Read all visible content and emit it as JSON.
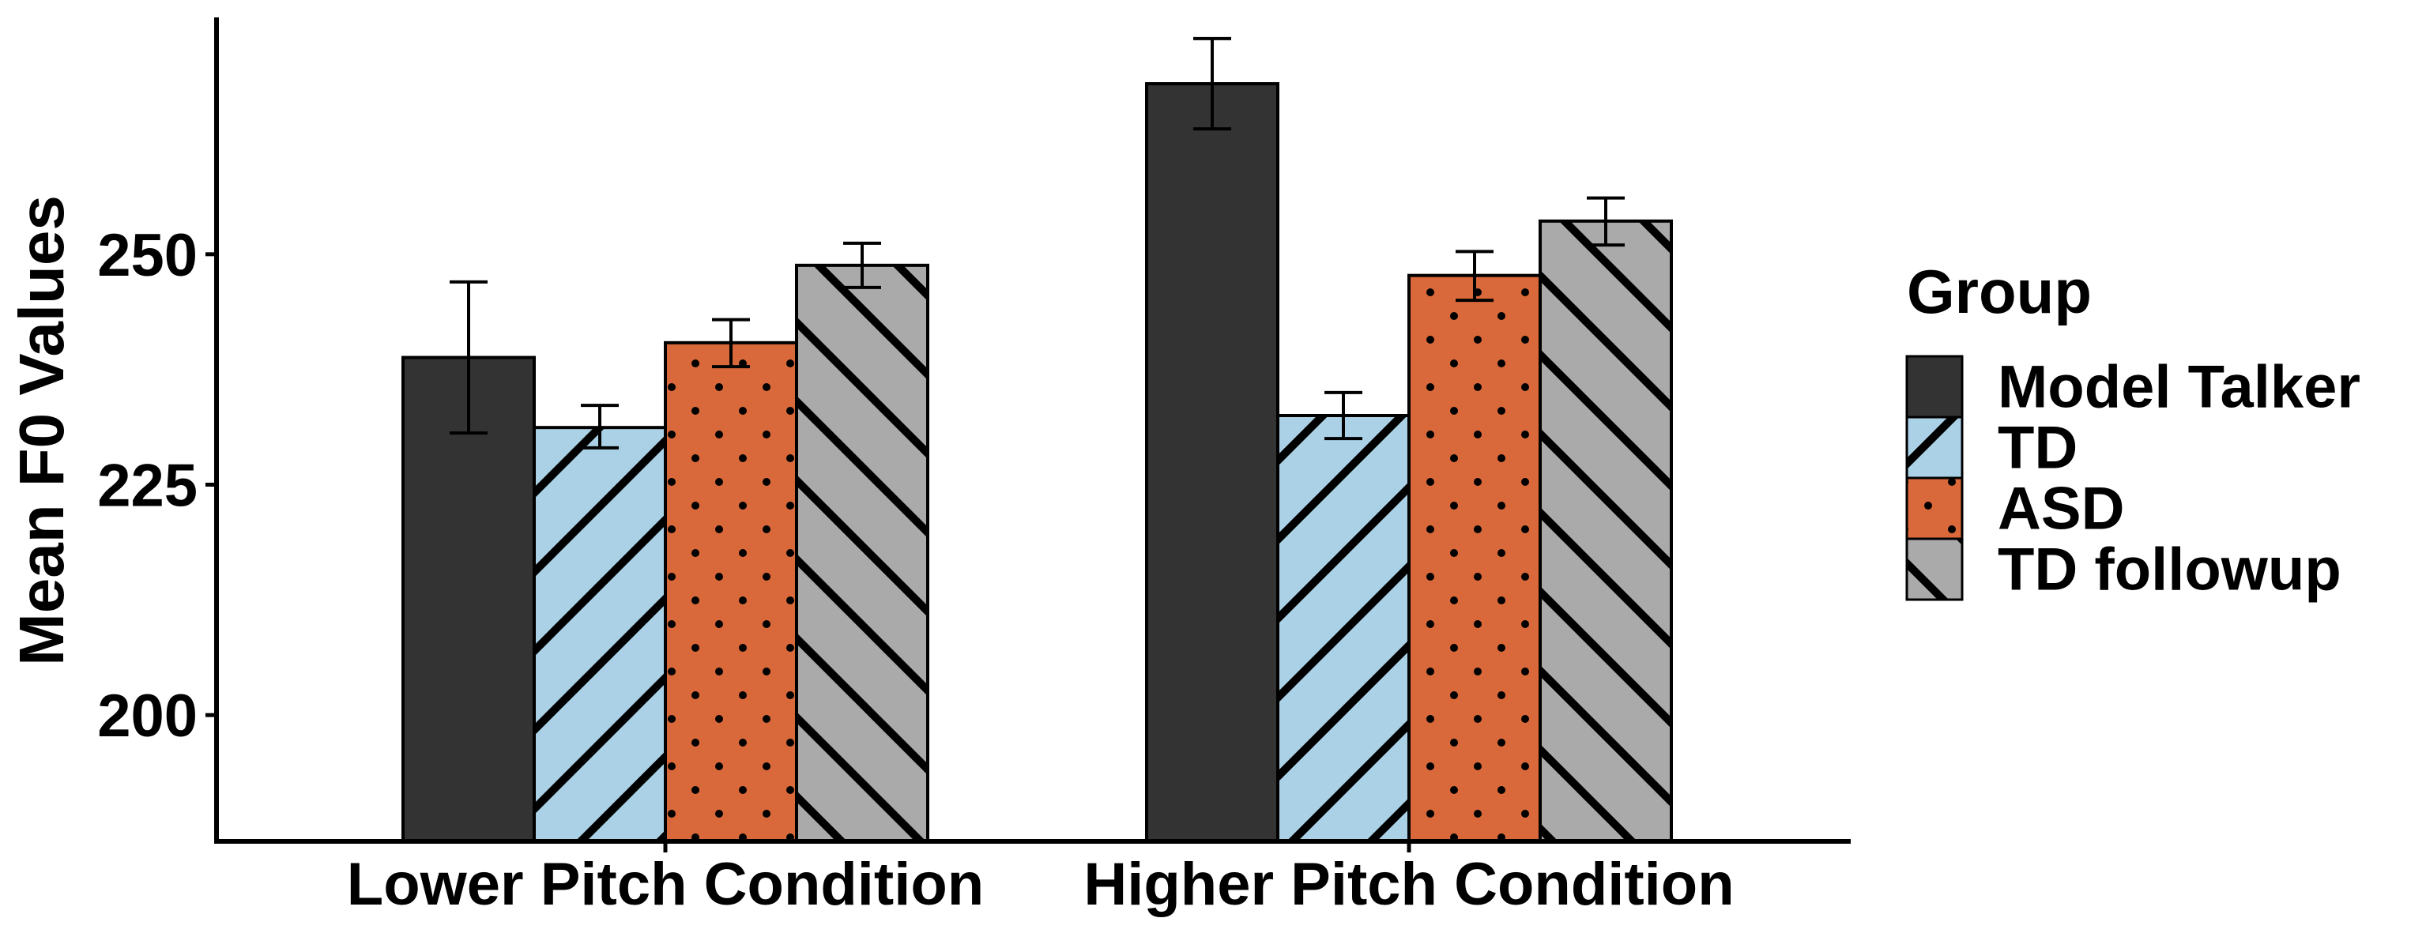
{
  "chart_data": {
    "type": "bar",
    "xlabel": "",
    "ylabel": "Mean F0 Values",
    "categories": [
      "Lower Pitch Condition",
      "Higher Pitch Condition"
    ],
    "yticks": [
      200,
      225,
      250
    ],
    "ylim": [
      186.3,
      275.7
    ],
    "grid": false,
    "legend": {
      "title": "Group",
      "position": "right"
    },
    "series": [
      {
        "name": "Model Talker",
        "color": "#333333",
        "pattern": "solid",
        "values": [
          238.8,
          268.5
        ],
        "err_low": [
          230.6,
          263.6
        ],
        "err_high": [
          247.0,
          273.4
        ]
      },
      {
        "name": "TD",
        "color": "#abd1e6",
        "pattern": "diagonal-up",
        "values": [
          231.2,
          232.5
        ],
        "err_low": [
          229.0,
          230.0
        ],
        "err_high": [
          233.6,
          235.0
        ]
      },
      {
        "name": "ASD",
        "color": "#d9693a",
        "pattern": "dots",
        "values": [
          240.4,
          247.7
        ],
        "err_low": [
          237.8,
          245.0
        ],
        "err_high": [
          242.9,
          250.3
        ]
      },
      {
        "name": "TD followup",
        "color": "#aaaaaa",
        "pattern": "diagonal-down",
        "values": [
          248.8,
          253.6
        ],
        "err_low": [
          246.4,
          251.0
        ],
        "err_high": [
          251.2,
          256.1
        ]
      }
    ]
  }
}
